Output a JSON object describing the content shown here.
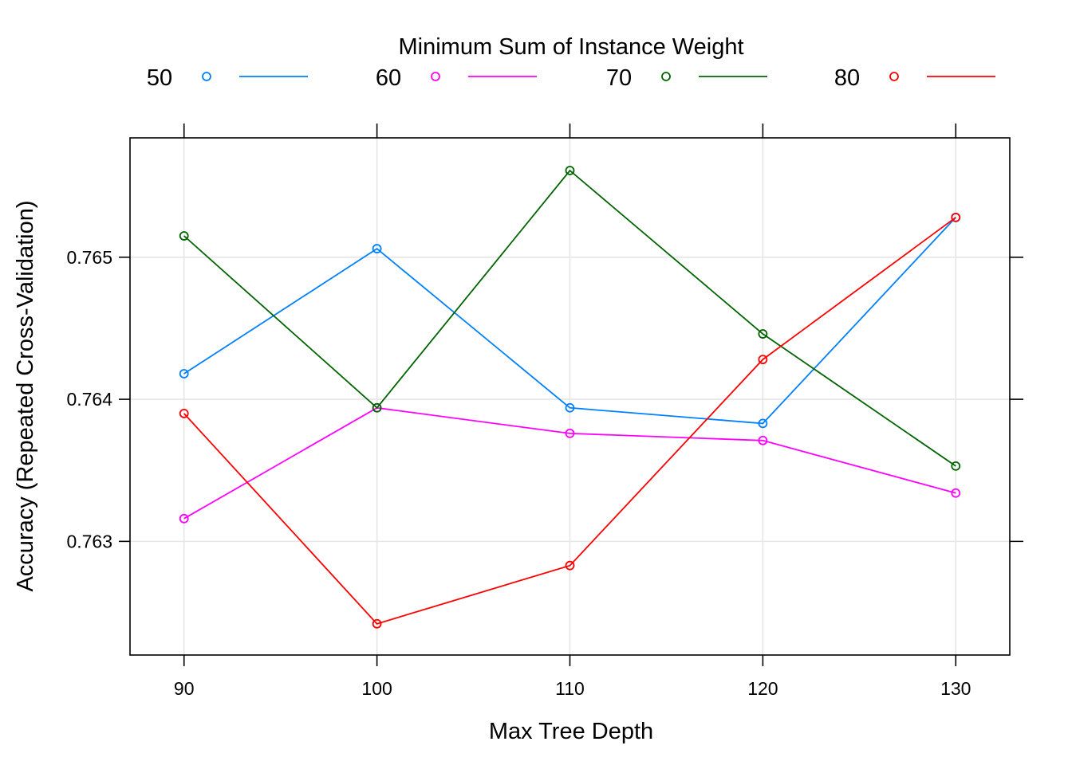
{
  "chart_data": {
    "type": "line",
    "title": "",
    "legend": {
      "title": "Minimum Sum of Instance Weight",
      "placement": "top",
      "entries": [
        "50",
        "60",
        "70",
        "80"
      ]
    },
    "xlabel": "Max Tree Depth",
    "ylabel": "Accuracy (Repeated Cross-Validation)",
    "x": [
      90,
      100,
      110,
      120,
      130
    ],
    "x_ticks": [
      "90",
      "100",
      "110",
      "120",
      "130"
    ],
    "y_ticks": [
      "0.763",
      "0.764",
      "0.765"
    ],
    "y_tick_values": [
      0.763,
      0.764,
      0.765
    ],
    "xlim": [
      87.2,
      132.8
    ],
    "ylim": [
      762.2,
      765.84
    ],
    "y_scale_note": "",
    "grid": true,
    "markers": "open-circle",
    "series": [
      {
        "name": "50",
        "color": "#0080ff",
        "values": [
          0.76418,
          0.76506,
          0.76394,
          0.76383,
          0.76528
        ]
      },
      {
        "name": "60",
        "color": "#ff00ff",
        "values": [
          0.76316,
          0.76394,
          0.76376,
          0.76371,
          0.76334
        ]
      },
      {
        "name": "70",
        "color": "#006400",
        "values": [
          0.76515,
          0.76394,
          0.76561,
          0.76446,
          0.76353
        ]
      },
      {
        "name": "80",
        "color": "#ff0000",
        "values": [
          0.7639,
          0.76242,
          0.76283,
          0.76428,
          0.76528
        ]
      }
    ]
  }
}
